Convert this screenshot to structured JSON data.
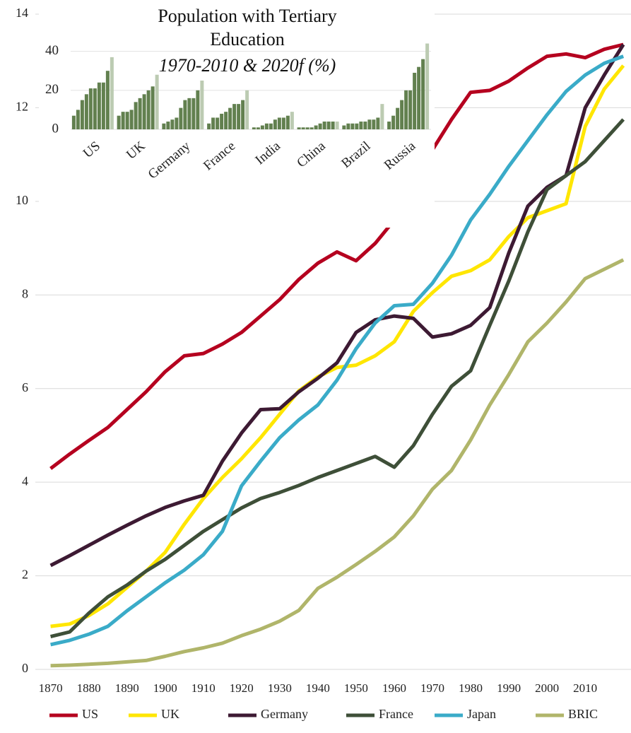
{
  "chart_data": [
    {
      "type": "line",
      "x": [
        1870,
        1875,
        1880,
        1885,
        1890,
        1895,
        1900,
        1905,
        1910,
        1915,
        1920,
        1925,
        1930,
        1935,
        1940,
        1945,
        1950,
        1955,
        1960,
        1965,
        1970,
        1975,
        1980,
        1985,
        1990,
        1995,
        2000,
        2005,
        2010,
        2015,
        2020
      ],
      "series": [
        {
          "name": "US",
          "color": "#b5001f",
          "values": [
            4.29,
            4.6,
            4.89,
            5.17,
            5.55,
            5.93,
            6.36,
            6.7,
            6.75,
            6.95,
            7.2,
            7.55,
            7.9,
            8.33,
            8.68,
            8.92,
            8.73,
            9.1,
            9.6,
            10.3,
            11.1,
            11.75,
            12.33,
            12.37,
            12.57,
            12.85,
            13.1,
            13.15,
            13.07,
            13.25,
            13.35
          ]
        },
        {
          "name": "UK",
          "color": "#ffe600",
          "values": [
            0.92,
            0.97,
            1.15,
            1.4,
            1.75,
            2.1,
            2.5,
            3.1,
            3.65,
            4.1,
            4.5,
            4.95,
            5.45,
            5.95,
            6.25,
            6.45,
            6.5,
            6.7,
            7.0,
            7.65,
            8.05,
            8.4,
            8.52,
            8.75,
            9.25,
            9.65,
            9.8,
            9.95,
            11.6,
            12.4,
            12.9
          ]
        },
        {
          "name": "Germany",
          "color": "#3d1a33",
          "values": [
            2.22,
            2.43,
            2.65,
            2.87,
            3.08,
            3.28,
            3.46,
            3.6,
            3.72,
            4.45,
            5.05,
            5.55,
            5.57,
            5.93,
            6.22,
            6.55,
            7.2,
            7.47,
            7.55,
            7.5,
            7.1,
            7.17,
            7.35,
            7.73,
            8.9,
            9.9,
            10.3,
            10.55,
            12.0,
            12.7,
            13.35
          ]
        },
        {
          "name": "France",
          "color": "#3e4f38",
          "values": [
            0.7,
            0.8,
            1.2,
            1.55,
            1.8,
            2.1,
            2.35,
            2.65,
            2.95,
            3.2,
            3.45,
            3.65,
            3.78,
            3.93,
            4.1,
            4.25,
            4.4,
            4.55,
            4.32,
            4.78,
            5.45,
            6.05,
            6.38,
            7.35,
            8.3,
            9.35,
            10.25,
            10.55,
            10.85,
            11.3,
            11.75
          ]
        },
        {
          "name": "Japan",
          "color": "#3aabc8",
          "values": [
            0.53,
            0.62,
            0.75,
            0.92,
            1.25,
            1.55,
            1.85,
            2.12,
            2.45,
            2.95,
            3.92,
            4.45,
            4.95,
            5.33,
            5.65,
            6.18,
            6.85,
            7.4,
            7.77,
            7.8,
            8.25,
            8.85,
            9.6,
            10.15,
            10.75,
            11.3,
            11.85,
            12.35,
            12.7,
            12.95,
            13.1
          ]
        },
        {
          "name": "BRIC",
          "color": "#b0b56a",
          "values": [
            0.08,
            0.09,
            0.11,
            0.13,
            0.16,
            0.19,
            0.28,
            0.38,
            0.46,
            0.56,
            0.72,
            0.86,
            1.03,
            1.26,
            1.73,
            1.97,
            2.24,
            2.52,
            2.83,
            3.28,
            3.85,
            4.25,
            4.9,
            5.65,
            6.3,
            7.0,
            7.4,
            7.85,
            8.35,
            8.55,
            8.75
          ]
        }
      ],
      "xlim": [
        1866,
        2022
      ],
      "xticks": [
        1870,
        1880,
        1890,
        1900,
        1910,
        1920,
        1930,
        1940,
        1950,
        1960,
        1970,
        1980,
        1990,
        2000,
        2010
      ],
      "ylim": [
        0,
        14
      ],
      "yticks": [
        0,
        2,
        4,
        6,
        8,
        10,
        12,
        14
      ],
      "grid": true,
      "legend": "bottom"
    },
    {
      "type": "bar",
      "title": "Population with Tertiary Education",
      "subtitle": "1970-2010 & 2020f (%)",
      "categories": [
        "US",
        "UK",
        "Germany",
        "France",
        "India",
        "China",
        "Brazil",
        "Russia"
      ],
      "series": [
        {
          "color": "#62804f",
          "values": [
            7,
            7,
            3,
            3,
            1,
            1,
            2,
            4
          ]
        },
        {
          "color": "#62804f",
          "values": [
            10,
            9,
            4,
            6,
            1,
            1,
            3,
            7
          ]
        },
        {
          "color": "#62804f",
          "values": [
            15,
            9,
            5,
            6,
            2,
            1,
            3,
            11
          ]
        },
        {
          "color": "#62804f",
          "values": [
            18,
            10,
            6,
            8,
            3,
            1,
            3,
            15
          ]
        },
        {
          "color": "#62804f",
          "values": [
            21,
            14,
            11,
            9,
            3,
            2,
            4,
            20
          ]
        },
        {
          "color": "#62804f",
          "values": [
            21,
            16,
            15,
            11,
            5,
            3,
            4,
            20
          ]
        },
        {
          "color": "#62804f",
          "values": [
            24,
            18,
            16,
            13,
            6,
            4,
            5,
            29
          ]
        },
        {
          "color": "#62804f",
          "values": [
            24,
            20,
            16,
            13,
            6,
            4,
            5,
            32
          ]
        },
        {
          "color": "#62804f",
          "values": [
            30,
            22,
            20,
            15,
            7,
            4,
            6,
            36
          ]
        },
        {
          "color": "#bccbb2",
          "values": [
            37,
            28,
            25,
            20,
            9,
            4,
            13,
            44
          ]
        }
      ],
      "ylim": [
        0,
        50
      ],
      "yticks": [
        0,
        20,
        40
      ],
      "grid": true
    }
  ]
}
